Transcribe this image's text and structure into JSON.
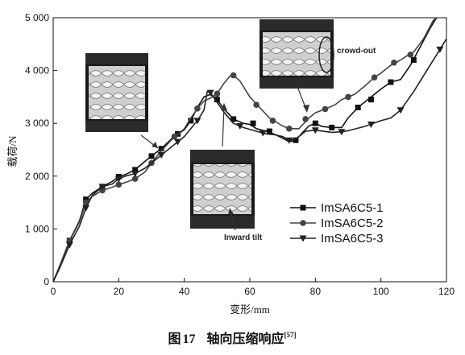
{
  "caption": {
    "fig_label": "图",
    "fig_number": "17",
    "title": "轴向压缩响应",
    "ref": "[57]"
  },
  "chart_data": {
    "type": "line",
    "xlabel": "变形/mm",
    "ylabel": "载荷/N",
    "xlim": [
      0,
      120
    ],
    "ylim": [
      0,
      5000
    ],
    "x_ticks": [
      {
        "value": 0,
        "label": "0"
      },
      {
        "value": 20,
        "label": "20"
      },
      {
        "value": 40,
        "label": "40"
      },
      {
        "value": 60,
        "label": "60"
      },
      {
        "value": 80,
        "label": "80"
      },
      {
        "value": 100,
        "label": "100"
      },
      {
        "value": 120,
        "label": "120"
      }
    ],
    "y_ticks": [
      {
        "value": 0,
        "label": "0"
      },
      {
        "value": 1000,
        "label": "1 000"
      },
      {
        "value": 2000,
        "label": "2 000"
      },
      {
        "value": 3000,
        "label": "3 000"
      },
      {
        "value": 4000,
        "label": "4 000"
      },
      {
        "value": 5000,
        "label": "5 000"
      }
    ],
    "grid": false,
    "legend_position": "lower-right",
    "series": [
      {
        "name": "ImSA6C5-1",
        "marker": "square",
        "color": "#111111",
        "points": [
          [
            0,
            0
          ],
          [
            2,
            300
          ],
          [
            5,
            780
          ],
          [
            8,
            1150
          ],
          [
            10,
            1560
          ],
          [
            12,
            1680
          ],
          [
            15,
            1800
          ],
          [
            18,
            1900
          ],
          [
            20,
            1990
          ],
          [
            22,
            2030
          ],
          [
            25,
            2120
          ],
          [
            28,
            2280
          ],
          [
            30,
            2380
          ],
          [
            33,
            2520
          ],
          [
            36,
            2700
          ],
          [
            40,
            2880
          ],
          [
            42,
            3050
          ],
          [
            44,
            3300
          ],
          [
            46,
            3500
          ],
          [
            48,
            3550
          ],
          [
            50,
            3450
          ],
          [
            52,
            3280
          ],
          [
            55,
            3080
          ],
          [
            58,
            3000
          ],
          [
            60,
            2980
          ],
          [
            62,
            2900
          ],
          [
            65,
            2850
          ],
          [
            68,
            2780
          ],
          [
            70,
            2720
          ],
          [
            72,
            2650
          ],
          [
            74,
            2680
          ],
          [
            76,
            2820
          ],
          [
            78,
            2950
          ],
          [
            80,
            3000
          ],
          [
            82,
            2940
          ],
          [
            85,
            2920
          ],
          [
            88,
            2920
          ],
          [
            90,
            3100
          ],
          [
            93,
            3300
          ],
          [
            96,
            3450
          ],
          [
            100,
            3650
          ],
          [
            103,
            3780
          ],
          [
            106,
            3830
          ],
          [
            109,
            4100
          ],
          [
            112,
            4450
          ],
          [
            115,
            4800
          ],
          [
            117,
            5000
          ]
        ],
        "markers": [
          [
            5,
            780
          ],
          [
            10,
            1560
          ],
          [
            15,
            1800
          ],
          [
            20,
            1990
          ],
          [
            25,
            2120
          ],
          [
            30,
            2380
          ],
          [
            33,
            2520
          ],
          [
            38,
            2800
          ],
          [
            42,
            3050
          ],
          [
            50,
            3450
          ],
          [
            55,
            3080
          ],
          [
            61,
            3000
          ],
          [
            66,
            2850
          ],
          [
            74,
            2680
          ],
          [
            80,
            3000
          ],
          [
            85,
            2920
          ],
          [
            93,
            3300
          ],
          [
            97,
            3450
          ],
          [
            103,
            3780
          ],
          [
            110,
            4200
          ]
        ]
      },
      {
        "name": "ImSA6C5-2",
        "marker": "circle",
        "color": "#444444",
        "points": [
          [
            0,
            0
          ],
          [
            2,
            290
          ],
          [
            5,
            770
          ],
          [
            8,
            1130
          ],
          [
            10,
            1500
          ],
          [
            12,
            1620
          ],
          [
            15,
            1730
          ],
          [
            18,
            1790
          ],
          [
            20,
            1840
          ],
          [
            22,
            1880
          ],
          [
            25,
            1950
          ],
          [
            28,
            2080
          ],
          [
            30,
            2250
          ],
          [
            33,
            2480
          ],
          [
            36,
            2680
          ],
          [
            40,
            2900
          ],
          [
            42,
            3100
          ],
          [
            44,
            3280
          ],
          [
            46,
            3420
          ],
          [
            48,
            3480
          ],
          [
            50,
            3560
          ],
          [
            52,
            3750
          ],
          [
            54,
            3900
          ],
          [
            55,
            3910
          ],
          [
            57,
            3800
          ],
          [
            60,
            3500
          ],
          [
            63,
            3300
          ],
          [
            66,
            3100
          ],
          [
            70,
            2950
          ],
          [
            72,
            2900
          ],
          [
            75,
            2900
          ],
          [
            78,
            3100
          ],
          [
            80,
            3200
          ],
          [
            83,
            3270
          ],
          [
            86,
            3350
          ],
          [
            88,
            3450
          ],
          [
            90,
            3500
          ],
          [
            92,
            3550
          ],
          [
            95,
            3700
          ],
          [
            98,
            3870
          ],
          [
            100,
            3950
          ],
          [
            103,
            4100
          ],
          [
            106,
            4200
          ],
          [
            108,
            4280
          ],
          [
            110,
            4350
          ],
          [
            113,
            4600
          ],
          [
            116,
            4950
          ],
          [
            117,
            5000
          ]
        ],
        "markers": [
          [
            5,
            770
          ],
          [
            10,
            1500
          ],
          [
            15,
            1730
          ],
          [
            20,
            1840
          ],
          [
            25,
            1950
          ],
          [
            30,
            2250
          ],
          [
            37,
            2750
          ],
          [
            44,
            3280
          ],
          [
            50,
            3560
          ],
          [
            55,
            3910
          ],
          [
            62,
            3350
          ],
          [
            67,
            3050
          ],
          [
            72,
            2900
          ],
          [
            77,
            3080
          ],
          [
            83,
            3270
          ],
          [
            90,
            3500
          ],
          [
            98,
            3870
          ],
          [
            104,
            4150
          ],
          [
            109,
            4300
          ]
        ]
      },
      {
        "name": "ImSA6C5-3",
        "marker": "triangle-down",
        "color": "#222222",
        "points": [
          [
            0,
            0
          ],
          [
            2,
            260
          ],
          [
            5,
            700
          ],
          [
            8,
            1050
          ],
          [
            10,
            1400
          ],
          [
            12,
            1640
          ],
          [
            15,
            1800
          ],
          [
            18,
            1850
          ],
          [
            20,
            1950
          ],
          [
            22,
            2000
          ],
          [
            25,
            2050
          ],
          [
            28,
            2150
          ],
          [
            30,
            2250
          ],
          [
            33,
            2400
          ],
          [
            36,
            2550
          ],
          [
            40,
            2750
          ],
          [
            42,
            2900
          ],
          [
            44,
            3050
          ],
          [
            46,
            3250
          ],
          [
            47,
            3600
          ],
          [
            48,
            3580
          ],
          [
            50,
            3400
          ],
          [
            52,
            3220
          ],
          [
            55,
            3000
          ],
          [
            58,
            2920
          ],
          [
            62,
            2850
          ],
          [
            65,
            2800
          ],
          [
            68,
            2780
          ],
          [
            70,
            2750
          ],
          [
            72,
            2680
          ],
          [
            74,
            2700
          ],
          [
            77,
            2850
          ],
          [
            80,
            2870
          ],
          [
            85,
            2830
          ],
          [
            88,
            2840
          ],
          [
            90,
            2860
          ],
          [
            95,
            2940
          ],
          [
            100,
            3050
          ],
          [
            103,
            3100
          ],
          [
            106,
            3250
          ],
          [
            110,
            3600
          ],
          [
            114,
            4000
          ],
          [
            118,
            4400
          ],
          [
            120,
            4600
          ]
        ],
        "markers": [
          [
            5,
            700
          ],
          [
            10,
            1400
          ],
          [
            15,
            1800
          ],
          [
            20,
            1950
          ],
          [
            25,
            2050
          ],
          [
            33,
            2400
          ],
          [
            38,
            2650
          ],
          [
            44,
            3050
          ],
          [
            48,
            3580
          ],
          [
            57,
            2950
          ],
          [
            64,
            2820
          ],
          [
            72,
            2680
          ],
          [
            80,
            2870
          ],
          [
            88,
            2840
          ],
          [
            97,
            2980
          ],
          [
            106,
            3250
          ],
          [
            118,
            4400
          ]
        ]
      }
    ],
    "annotations": [
      {
        "label": "crowd-out"
      },
      {
        "label": "Inward tilt"
      }
    ]
  }
}
